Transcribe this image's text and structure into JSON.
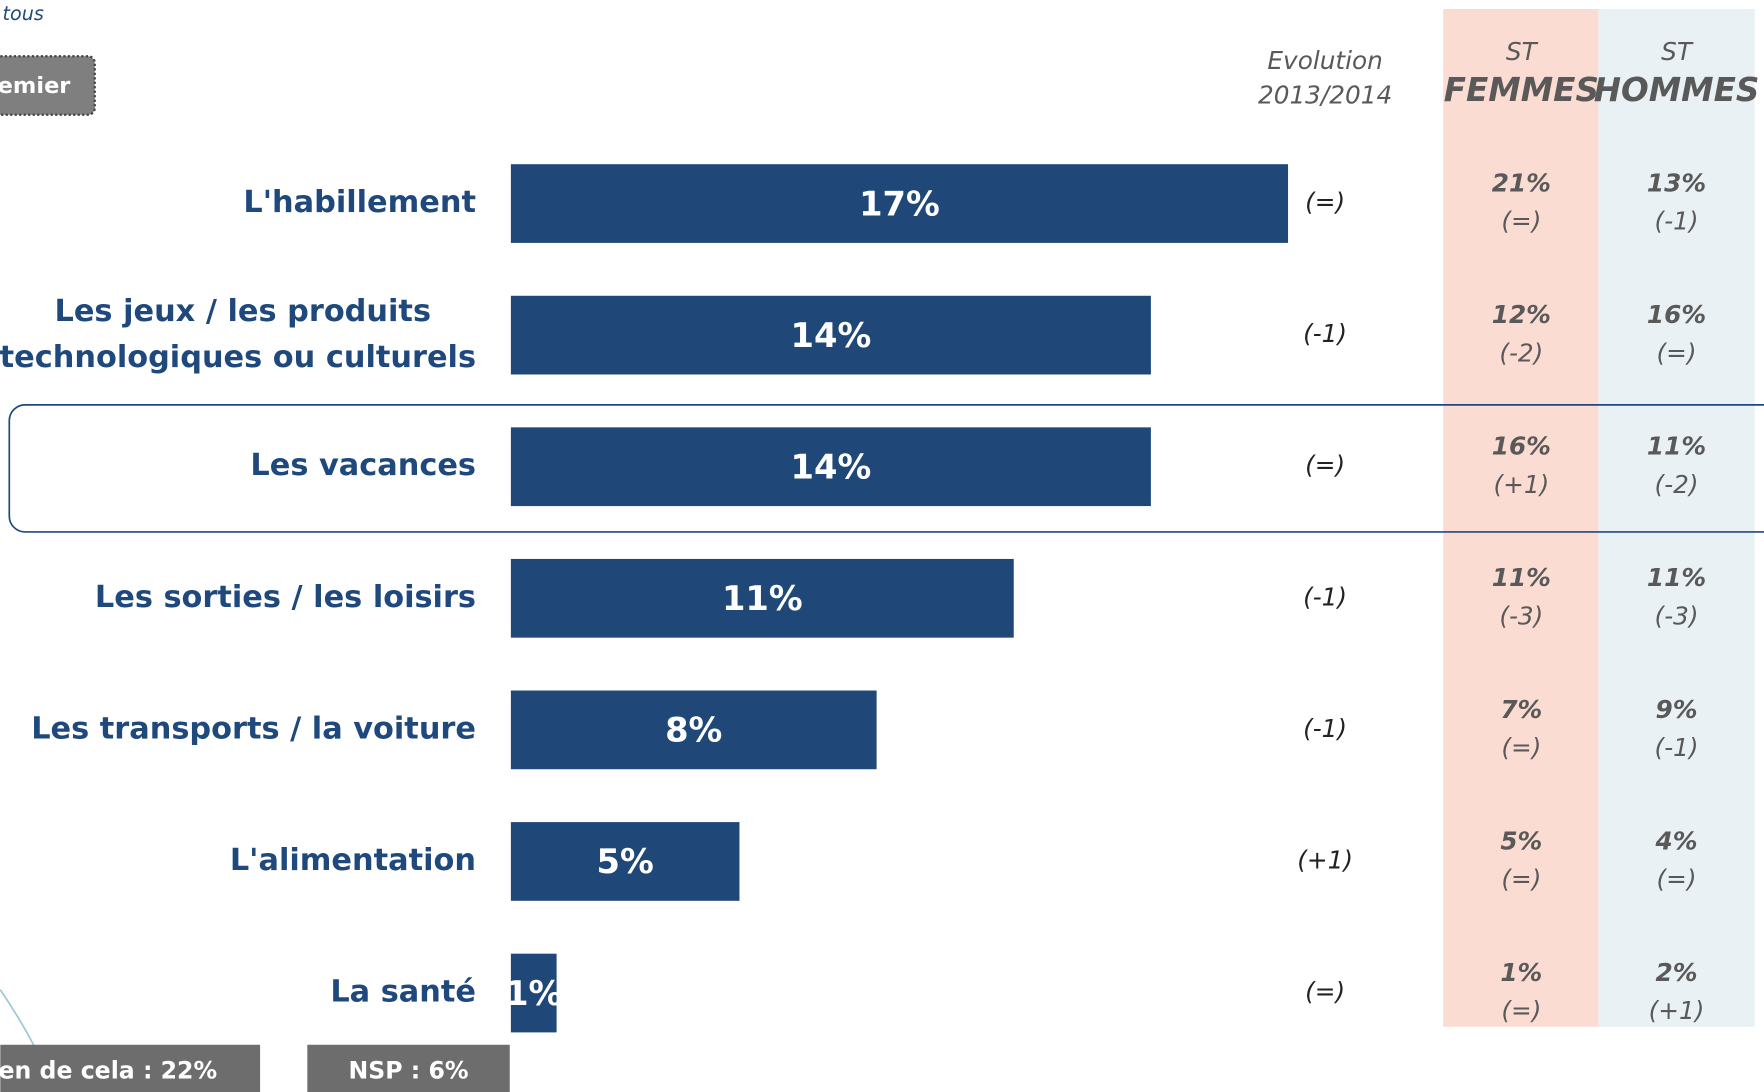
{
  "top_note": "tous",
  "button": "emier",
  "footer": [
    "ien de cela : 22%",
    "NSP : 6%"
  ],
  "chart_data": {
    "type": "bar",
    "orientation": "horizontal",
    "color": "#1f4778",
    "categories": [
      "L'habillement",
      "Les jeux / les produits\ntechnologiques ou culturels",
      "Les vacances",
      "Les sorties / les loisirs",
      "Les transports / la voiture",
      "L'alimentation",
      "La santé"
    ],
    "values": [
      17,
      14,
      14,
      11,
      8,
      5,
      1
    ],
    "value_labels": [
      "17%",
      "14%",
      "14%",
      "11%",
      "8%",
      "5%",
      "1%"
    ],
    "evolution_header": [
      "Evolution",
      "2013/2014"
    ],
    "evolution": [
      "(=)",
      "(-1)",
      "(=)",
      "(-1)",
      "(-1)",
      "(+1)",
      "(=)"
    ],
    "columns": [
      {
        "label": "ST",
        "title": "FEMMES",
        "color": "#fbdcd2",
        "values": [
          "21%",
          "12%",
          "16%",
          "11%",
          "7%",
          "5%",
          "1%"
        ],
        "changes": [
          "(=)",
          "(-2)",
          "(+1)",
          "(-3)",
          "(=)",
          "(=)",
          "(=)"
        ]
      },
      {
        "label": "ST",
        "title": "HOMMES",
        "color": "#e9f1f4",
        "values": [
          "13%",
          "16%",
          "11%",
          "11%",
          "9%",
          "4%",
          "2%"
        ],
        "changes": [
          "(-1)",
          "(=)",
          "(-2)",
          "(-3)",
          "(-1)",
          "(=)",
          "(+1)"
        ]
      }
    ]
  }
}
